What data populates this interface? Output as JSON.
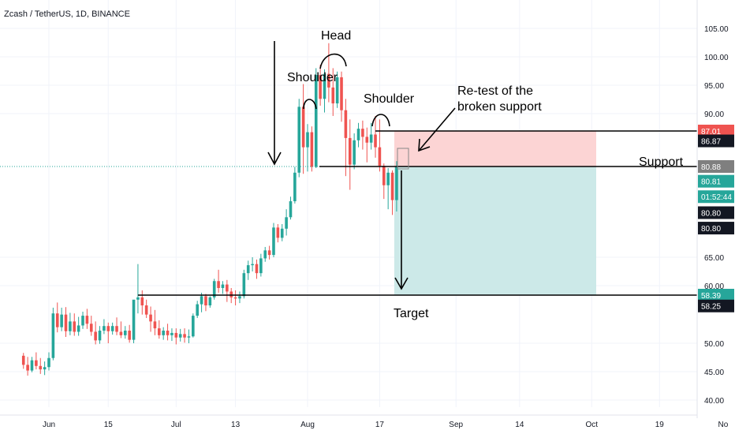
{
  "header": {
    "title": "Zcash / TetherUS, 1D, BINANCE"
  },
  "colors": {
    "up": "#26a69a",
    "down": "#ef5350",
    "line": "#000000",
    "stop_zone": "#fcd4d4",
    "target_zone": "#cce9e8",
    "current_price": "#26a69a",
    "stop_tag": "#ef5350",
    "support_tag": "#7f7f7f",
    "black_tag": "#131722"
  },
  "annotations": {
    "head": "Head",
    "left_shoulder": "Shoulder",
    "right_shoulder": "Shoulder",
    "retest_line1": "Re-test of the",
    "retest_line2": "broken support",
    "support": "Support",
    "target": "Target"
  },
  "price_tags": [
    {
      "value": "87.01",
      "price": 87.01,
      "style": "stop_tag"
    },
    {
      "value": "86.87",
      "price": 85.3,
      "style": "black_tag"
    },
    {
      "value": "80.88",
      "price": 80.88,
      "style": "support_tag"
    },
    {
      "value": "80.81",
      "price": 78.3,
      "style": "current_price"
    },
    {
      "value": "01:52:44",
      "price": 75.6,
      "style": "current_price"
    },
    {
      "value": "80.80",
      "price": 72.8,
      "style": "black_tag"
    },
    {
      "value": "80.80",
      "price": 70.1,
      "style": "black_tag"
    },
    {
      "value": "58.39",
      "price": 58.39,
      "style": "current_price"
    },
    {
      "value": "58.25",
      "price": 56.5,
      "style": "black_tag"
    }
  ],
  "chart_data": {
    "type": "candlestick",
    "title": "Zcash / TetherUS, 1D, BINANCE",
    "y_axis": {
      "ticks": [
        "105.00",
        "100.00",
        "95.00",
        "90.00",
        "65.00",
        "60.00",
        "50.00",
        "45.00",
        "40.00"
      ],
      "tick_values": [
        105,
        100,
        95,
        90,
        65,
        60,
        50,
        45,
        40
      ],
      "range": [
        38.5,
        108
      ]
    },
    "x_axis": {
      "ticks": [
        "Jun",
        "15",
        "Jul",
        "13",
        "Aug",
        "17",
        "Sep",
        "14",
        "Oct",
        "19",
        "No"
      ],
      "tick_days": [
        6,
        20,
        36,
        50,
        67,
        84,
        102,
        117,
        134,
        150,
        165
      ],
      "range_days": [
        0,
        167
      ]
    },
    "levels": {
      "support": 80.88,
      "neckline_target": 58.39,
      "stop": 87.01
    },
    "candles": [
      [
        0,
        47.8,
        48.3,
        46.2,
        45.5
      ],
      [
        1,
        46.2,
        47.6,
        45.2,
        44.3
      ],
      [
        2,
        45.2,
        47.6,
        47.0,
        44.9
      ],
      [
        3,
        47.0,
        48.4,
        46.0,
        45.4
      ],
      [
        4,
        46.0,
        47.4,
        45.4,
        44.6
      ],
      [
        5,
        45.4,
        46.8,
        45.8,
        44.4
      ],
      [
        6,
        45.8,
        48.4,
        47.4,
        45.2
      ],
      [
        7,
        47.4,
        56.2,
        55.2,
        47.0
      ],
      [
        8,
        55.2,
        57.1,
        52.8,
        51.9
      ],
      [
        9,
        52.8,
        56.2,
        55.0,
        52.1
      ],
      [
        10,
        55.0,
        56.3,
        52.1,
        51.1
      ],
      [
        11,
        52.1,
        55.3,
        53.8,
        51.4
      ],
      [
        12,
        53.8,
        55.2,
        52.0,
        51.3
      ],
      [
        13,
        52.0,
        54.6,
        53.1,
        51.3
      ],
      [
        14,
        53.1,
        55.5,
        54.8,
        52.5
      ],
      [
        15,
        54.8,
        56.0,
        53.4,
        52.5
      ],
      [
        16,
        53.4,
        54.8,
        52.0,
        51.3
      ],
      [
        17,
        52.0,
        53.8,
        50.5,
        49.8
      ],
      [
        18,
        50.5,
        53.0,
        52.2,
        49.9
      ],
      [
        19,
        52.2,
        54.2,
        53.0,
        51.6
      ],
      [
        20,
        53.0,
        53.6,
        52.1,
        50.0
      ],
      [
        21,
        52.1,
        53.6,
        53.0,
        51.5
      ],
      [
        22,
        53.0,
        54.5,
        52.0,
        51.4
      ],
      [
        23,
        52.0,
        53.8,
        51.4,
        50.9
      ],
      [
        24,
        51.4,
        53.0,
        52.2,
        50.8
      ],
      [
        25,
        52.2,
        53.2,
        50.6,
        50.1
      ],
      [
        26,
        50.6,
        53.2,
        57.6,
        50.0
      ],
      [
        27,
        57.6,
        63.8,
        58.0,
        55.2
      ],
      [
        28,
        58.0,
        59.2,
        56.6,
        55.0
      ],
      [
        29,
        56.6,
        57.6,
        55.0,
        54.4
      ],
      [
        30,
        55.0,
        56.4,
        53.8,
        52.0
      ],
      [
        31,
        53.8,
        55.8,
        52.6,
        51.4
      ],
      [
        32,
        52.6,
        54.0,
        51.4,
        50.8
      ],
      [
        33,
        51.4,
        52.8,
        52.2,
        50.6
      ],
      [
        34,
        52.2,
        53.4,
        51.4,
        50.5
      ],
      [
        35,
        51.4,
        52.6,
        51.8,
        50.4
      ],
      [
        36,
        51.8,
        52.6,
        51.0,
        49.8
      ],
      [
        37,
        51.0,
        52.5,
        51.6,
        50.3
      ],
      [
        38,
        51.6,
        52.6,
        51.0,
        50.1
      ],
      [
        39,
        51.0,
        52.4,
        51.2,
        50.0
      ],
      [
        40,
        51.2,
        55.2,
        54.8,
        51.0
      ],
      [
        41,
        54.8,
        57.4,
        56.8,
        54.4
      ],
      [
        42,
        56.8,
        58.8,
        58.2,
        55.4
      ],
      [
        43,
        58.2,
        58.6,
        56.6,
        55.6
      ],
      [
        44,
        56.6,
        58.2,
        58.0,
        56.2
      ],
      [
        45,
        58.0,
        61.2,
        60.8,
        57.6
      ],
      [
        46,
        60.8,
        62.8,
        59.6,
        58.8
      ],
      [
        47,
        59.6,
        60.8,
        60.2,
        58.6
      ],
      [
        48,
        60.2,
        61.0,
        59.0,
        57.2
      ],
      [
        49,
        59.0,
        59.6,
        58.0,
        57.0
      ],
      [
        50,
        58.0,
        59.2,
        57.8,
        56.6
      ],
      [
        51,
        57.8,
        59.0,
        58.2,
        57.0
      ],
      [
        52,
        58.2,
        62.8,
        62.2,
        57.8
      ],
      [
        53,
        62.2,
        64.4,
        63.6,
        61.0
      ],
      [
        54,
        63.6,
        65.0,
        63.8,
        62.5
      ],
      [
        55,
        63.8,
        64.6,
        62.2,
        61.2
      ],
      [
        56,
        62.2,
        65.6,
        64.8,
        61.6
      ],
      [
        57,
        64.8,
        66.8,
        66.2,
        64.2
      ],
      [
        58,
        66.2,
        67.0,
        65.4,
        64.6
      ],
      [
        59,
        65.4,
        71.0,
        70.2,
        65.0
      ],
      [
        60,
        70.2,
        70.8,
        68.4,
        67.6
      ],
      [
        61,
        68.4,
        70.8,
        70.0,
        67.8
      ],
      [
        62,
        70.0,
        73.4,
        72.0,
        68.8
      ],
      [
        63,
        72.0,
        75.6,
        74.8,
        71.6
      ],
      [
        64,
        74.8,
        80.8,
        79.8,
        74.4
      ],
      [
        65,
        79.8,
        92.6,
        91.2,
        79.0
      ],
      [
        66,
        91.2,
        95.2,
        84.2,
        79.6
      ],
      [
        67,
        84.2,
        88.2,
        86.8,
        80.0
      ],
      [
        68,
        86.8,
        87.8,
        80.8,
        80.0
      ],
      [
        69,
        80.8,
        98.0,
        96.8,
        80.6
      ],
      [
        70,
        96.8,
        98.6,
        92.6,
        91.4
      ],
      [
        71,
        92.6,
        97.8,
        97.0,
        90.2
      ],
      [
        72,
        97.0,
        102.4,
        94.6,
        92.0
      ],
      [
        73,
        94.6,
        98.0,
        91.8,
        89.6
      ],
      [
        74,
        91.8,
        97.4,
        96.4,
        91.0
      ],
      [
        75,
        96.4,
        97.4,
        90.6,
        88.6
      ],
      [
        76,
        90.6,
        92.6,
        85.8,
        79.2
      ],
      [
        77,
        85.8,
        89.0,
        81.2,
        76.8
      ],
      [
        78,
        81.2,
        86.6,
        85.4,
        80.4
      ],
      [
        79,
        85.4,
        88.4,
        87.4,
        84.2
      ],
      [
        80,
        87.4,
        88.8,
        86.0,
        83.8
      ],
      [
        81,
        86.0,
        87.6,
        85.0,
        81.6
      ],
      [
        82,
        85.0,
        88.4,
        86.4,
        83.8
      ],
      [
        83,
        86.4,
        89.6,
        84.2,
        82.4
      ],
      [
        84,
        84.2,
        89.0,
        81.0,
        80.0
      ],
      [
        85,
        81.0,
        81.4,
        77.6,
        75.2
      ],
      [
        86,
        77.6,
        80.6,
        79.8,
        73.4
      ],
      [
        87,
        79.8,
        80.2,
        75.0,
        72.4
      ],
      [
        88,
        75.0,
        81.8,
        80.8,
        73.0
      ]
    ],
    "candle_fields": [
      "day",
      "open",
      "high",
      "close",
      "low"
    ]
  }
}
